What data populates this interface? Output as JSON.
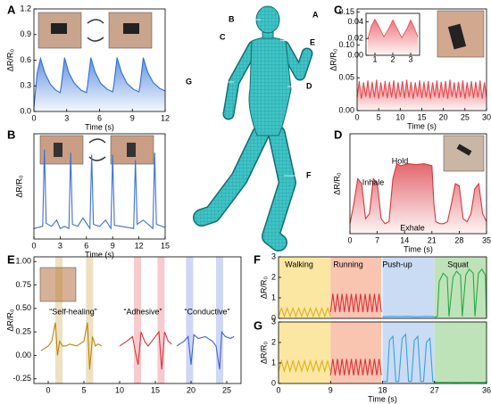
{
  "chart_data": [
    {
      "type": "line",
      "label": "A",
      "xlabel": "Time (s)",
      "ylabel": "ΔR/R₀",
      "area": true,
      "xlim": [
        0,
        12
      ],
      "xticks": [
        0,
        3,
        6,
        9,
        12
      ],
      "ylim": [
        0,
        1.2
      ],
      "yticks": [
        {
          "value": 0,
          "label": "0.0"
        },
        0.3,
        0.6,
        0.9,
        1.2
      ],
      "series": [
        {
          "color": "#2f6fd6",
          "x": [
            0,
            0.3,
            0.6,
            1.0,
            1.5,
            2.0,
            2.4,
            2.5,
            2.8,
            3.2,
            3.7,
            4.3,
            4.8,
            4.9,
            5.2,
            5.6,
            6.1,
            6.7,
            7.2,
            7.3,
            7.6,
            8.0,
            8.5,
            9.1,
            9.6,
            9.7,
            10.0,
            10.4,
            10.9,
            11.5,
            12
          ],
          "values": [
            0.05,
            0.45,
            0.62,
            0.45,
            0.32,
            0.25,
            0.22,
            0.3,
            0.63,
            0.45,
            0.33,
            0.25,
            0.22,
            0.3,
            0.63,
            0.46,
            0.33,
            0.26,
            0.23,
            0.3,
            0.63,
            0.46,
            0.33,
            0.26,
            0.23,
            0.3,
            0.63,
            0.46,
            0.34,
            0.27,
            0.24
          ]
        }
      ]
    },
    {
      "type": "line",
      "label": "B",
      "xlabel": "Time (s)",
      "ylabel": "ΔR/R₀",
      "xlim": [
        0,
        15
      ],
      "xticks": [
        0,
        3,
        6,
        9,
        12,
        15
      ],
      "ylim": [
        0,
        1
      ],
      "series": [
        {
          "color": "#3b6fd8",
          "x": [
            0,
            1.0,
            1.2,
            1.4,
            2,
            2.6,
            3,
            3.5,
            4.0,
            4.2,
            4.4,
            5,
            5.6,
            6.4,
            6.6,
            6.8,
            7.5,
            8.2,
            8.8,
            9.0,
            9.2,
            10,
            11.4,
            11.6,
            11.8,
            12.5,
            13.6,
            13.8,
            14.0,
            15
          ],
          "values": [
            0.1,
            0.12,
            0.85,
            0.15,
            0.12,
            0.18,
            0.1,
            0.12,
            0.1,
            0.82,
            0.14,
            0.12,
            0.2,
            0.1,
            0.8,
            0.14,
            0.12,
            0.18,
            0.1,
            0.8,
            0.13,
            0.12,
            0.1,
            0.75,
            0.14,
            0.18,
            0.1,
            0.82,
            0.14,
            0.11
          ]
        }
      ]
    },
    {
      "type": "line",
      "label": "C",
      "xlabel": "Time (s)",
      "ylabel": "ΔR/R₀",
      "area": true,
      "xlim": [
        0,
        30
      ],
      "xticks": [
        0,
        5,
        10,
        15,
        20,
        25,
        30
      ],
      "ylim": [
        0,
        0.155
      ],
      "yticks": [
        {
          "value": 0,
          "label": "0.00"
        },
        0.05,
        {
          "value": 0.1,
          "label": "0.10"
        },
        0.15
      ],
      "series": [
        {
          "color": "#e8484f",
          "x": [
            0,
            0.5,
            1,
            1.5,
            2,
            2.5,
            3,
            3.5,
            4,
            4.5,
            5,
            5.5,
            6,
            6.5,
            7,
            7.5,
            8,
            8.5,
            9,
            9.5,
            10,
            10.5,
            11,
            11.5,
            12,
            12.5,
            13,
            13.5,
            14,
            14.5,
            15,
            15.5,
            16,
            16.5,
            17,
            17.5,
            18,
            18.5,
            19,
            19.5,
            20,
            20.5,
            21,
            21.5,
            22,
            22.5,
            23,
            23.5,
            24,
            24.5,
            25,
            25.5,
            26,
            26.5,
            27,
            27.5,
            28,
            28.5,
            29,
            29.5,
            30
          ],
          "values": [
            0.02,
            0.045,
            0.018,
            0.043,
            0.021,
            0.046,
            0.019,
            0.044,
            0.02,
            0.047,
            0.018,
            0.043,
            0.021,
            0.045,
            0.019,
            0.044,
            0.02,
            0.046,
            0.018,
            0.043,
            0.021,
            0.045,
            0.019,
            0.047,
            0.02,
            0.044,
            0.018,
            0.043,
            0.021,
            0.046,
            0.019,
            0.044,
            0.02,
            0.045,
            0.018,
            0.043,
            0.021,
            0.046,
            0.019,
            0.044,
            0.02,
            0.045,
            0.018,
            0.047,
            0.021,
            0.043,
            0.019,
            0.044,
            0.02,
            0.046,
            0.018,
            0.043,
            0.021,
            0.045,
            0.019,
            0.044,
            0.02,
            0.046,
            0.018,
            0.043,
            0.021
          ]
        }
      ]
    },
    {
      "type": "line",
      "area": true,
      "xlim": [
        0.5,
        3.5
      ],
      "xticks": [
        1,
        2,
        3
      ],
      "ylim": [
        0,
        0.05
      ],
      "yticks": [
        {
          "value": 0,
          "label": "0.00"
        },
        {
          "value": 0.02,
          "label": "0.02"
        },
        {
          "value": 0.04,
          "label": "0.04"
        }
      ],
      "series": [
        {
          "color": "#e8484f",
          "x": [
            0.6,
            0.8,
            1.0,
            1.2,
            1.5,
            1.8,
            2.0,
            2.2,
            2.5,
            2.8,
            3.0,
            3.2,
            3.4
          ],
          "values": [
            0.02,
            0.035,
            0.043,
            0.035,
            0.022,
            0.033,
            0.042,
            0.034,
            0.021,
            0.032,
            0.042,
            0.033,
            0.022
          ]
        }
      ]
    },
    {
      "type": "line",
      "label": "D",
      "xlabel": "Time (s)",
      "ylabel": "ΔR/R₀",
      "area": true,
      "xlim": [
        0,
        35
      ],
      "xticks": [
        0,
        7,
        14,
        21,
        28,
        35
      ],
      "ylim": [
        0,
        1
      ],
      "annotations": [
        "Inhale",
        "Hold",
        "Exhale"
      ],
      "series": [
        {
          "color": "#d9363e",
          "x": [
            0,
            1,
            2,
            3,
            4,
            5,
            6,
            7,
            8,
            9,
            10,
            11,
            12,
            13,
            15,
            17,
            19,
            21,
            21.5,
            22,
            23,
            24,
            25,
            26,
            27,
            28,
            29,
            30,
            31,
            32,
            33,
            34,
            35
          ],
          "values": [
            0.1,
            0.3,
            0.55,
            0.5,
            0.15,
            0.2,
            0.55,
            0.5,
            0.15,
            0.1,
            0.12,
            0.55,
            0.7,
            0.68,
            0.7,
            0.69,
            0.7,
            0.68,
            0.3,
            0.12,
            0.1,
            0.1,
            0.12,
            0.3,
            0.5,
            0.48,
            0.15,
            0.12,
            0.2,
            0.45,
            0.5,
            0.2,
            0.12
          ]
        }
      ]
    },
    {
      "type": "line",
      "label": "E",
      "ylabel": "ΔR/R₀",
      "xlim": [
        -2,
        27
      ],
      "xticks": [
        0,
        5,
        10,
        15,
        20,
        25
      ],
      "ylim": [
        -0.3,
        1.05
      ],
      "yticks": [
        {
          "value": 1,
          "label": "1.00"
        },
        0.75,
        {
          "value": 0.5,
          "label": "0.50"
        },
        0.25,
        {
          "value": 0,
          "label": "0.00"
        },
        -0.25
      ],
      "series": [
        {
          "name": "“Self-healing”",
          "color": "#b8860b",
          "spans": [
            [
              1,
              2
            ],
            [
              5.3,
              6.3
            ]
          ],
          "x": [
            -1,
            0,
            0.5,
            1,
            1.3,
            1.6,
            2,
            2.5,
            3,
            4,
            5,
            5.5,
            5.8,
            6.2,
            6.6,
            7,
            7.5
          ],
          "values": [
            0.05,
            0.1,
            0.15,
            0.35,
            0.0,
            0.15,
            0.1,
            0.1,
            0.12,
            0.1,
            0.15,
            0.35,
            -0.15,
            0.2,
            0.1,
            0.12,
            0.1
          ]
        },
        {
          "name": "“Adhesive”",
          "color": "#e0303a",
          "spans": [
            [
              12,
              13
            ],
            [
              15.3,
              16.3
            ]
          ],
          "x": [
            10,
            11,
            11.8,
            12.3,
            12.6,
            13,
            13.5,
            14,
            15,
            15.5,
            15.9,
            16.3,
            16.8,
            17.3
          ],
          "values": [
            0.1,
            0.15,
            0.2,
            0.0,
            -0.1,
            0.25,
            0.15,
            0.1,
            0.2,
            0.25,
            -0.15,
            0.25,
            0.15,
            0.12
          ]
        },
        {
          "name": "“Conductive”",
          "color": "#3f5fe0",
          "spans": [
            [
              19.3,
              20.3
            ],
            [
              23.5,
              24.5
            ]
          ],
          "x": [
            18,
            19,
            19.6,
            20,
            20.4,
            21,
            22,
            23,
            23.5,
            24,
            24.3,
            24.8,
            25.5,
            26
          ],
          "values": [
            0.1,
            0.15,
            0.2,
            -0.1,
            0.22,
            0.18,
            0.2,
            0.15,
            0.1,
            -0.15,
            0.25,
            0.2,
            0.18,
            0.2
          ]
        }
      ]
    },
    {
      "type": "line",
      "label": "F",
      "ylabel": "ΔR/R₀",
      "xlim": [
        0,
        36
      ],
      "ylim": [
        0,
        3
      ],
      "yticks": [
        0,
        1,
        2,
        3
      ],
      "series": [
        {
          "name": "Walking",
          "color": "#e0b020",
          "band": "#fbe7a1",
          "x": [
            0,
            0.5,
            1,
            1.5,
            2,
            2.5,
            3,
            3.5,
            4,
            4.5,
            5,
            5.5,
            6,
            6.5,
            7,
            7.5,
            8,
            8.5,
            9
          ],
          "values": [
            0.1,
            0.5,
            0.1,
            0.5,
            0.1,
            0.5,
            0.1,
            0.5,
            0.1,
            0.5,
            0.1,
            0.5,
            0.1,
            0.5,
            0.1,
            0.5,
            0.1,
            0.5,
            0.1
          ]
        },
        {
          "name": "Running",
          "color": "#e0303a",
          "band": "#f9c4b0",
          "x": [
            9,
            9.4,
            9.8,
            10.2,
            10.6,
            11,
            11.4,
            11.8,
            12.2,
            12.6,
            13,
            13.4,
            13.8,
            14.2,
            14.6,
            15,
            15.4,
            15.8,
            16.2,
            16.6,
            17,
            17.4,
            17.8
          ],
          "values": [
            0.3,
            1.2,
            0.3,
            1.2,
            0.3,
            1.2,
            0.3,
            1.2,
            0.3,
            1.2,
            0.3,
            1.2,
            0.3,
            1.2,
            0.3,
            1.2,
            0.3,
            1.2,
            0.3,
            1.2,
            0.3,
            1.2,
            0.3
          ]
        },
        {
          "name": "Push-up",
          "color": "#3aa0e0",
          "band": "#c9dcf3",
          "x": [
            18,
            19.5,
            21,
            22.5,
            24,
            25.5,
            27
          ],
          "values": [
            0.08,
            0.1,
            0.09,
            0.1,
            0.08,
            0.1,
            0.09
          ]
        },
        {
          "name": "Squat",
          "color": "#2aa84a",
          "band": "#bfe3b8",
          "x": [
            27,
            27.5,
            27.8,
            28.5,
            29.2,
            29.5,
            30.2,
            30.8,
            31.5,
            31.8,
            32.4,
            33,
            33.7,
            34,
            34.6,
            35.2,
            35.8,
            36
          ],
          "values": [
            0.05,
            0.1,
            1.8,
            2.2,
            2.0,
            0.1,
            2.0,
            2.3,
            2.1,
            0.1,
            2.1,
            2.4,
            2.2,
            0.1,
            2.2,
            2.4,
            2.1,
            0.1
          ]
        }
      ]
    },
    {
      "type": "line",
      "label": "G",
      "ylabel": "ΔR/R₀",
      "xlabel": "Time (s)",
      "xlim": [
        0,
        36
      ],
      "xticks": [
        0,
        9,
        18,
        27,
        36
      ],
      "ylim": [
        0,
        3
      ],
      "yticks": [
        0,
        1,
        2,
        3
      ],
      "series": [
        {
          "color": "#e0b020",
          "band": "#fbe7a1",
          "x": [
            0,
            0.5,
            1,
            1.5,
            2,
            2.5,
            3,
            3.5,
            4,
            4.5,
            5,
            5.5,
            6,
            6.5,
            7,
            7.5,
            8,
            8.5,
            9
          ],
          "values": [
            0.6,
            1.1,
            0.6,
            1.1,
            0.6,
            1.1,
            0.6,
            1.1,
            0.6,
            1.1,
            0.6,
            1.1,
            0.6,
            1.1,
            0.6,
            1.1,
            0.6,
            1.1,
            0.6
          ]
        },
        {
          "color": "#e0303a",
          "band": "#f9c4b0",
          "x": [
            9,
            9.4,
            9.8,
            10.2,
            10.6,
            11,
            11.4,
            11.8,
            12.2,
            12.6,
            13,
            13.4,
            13.8,
            14.2,
            14.6,
            15,
            15.4,
            15.8,
            16.2,
            16.6,
            17,
            17.4,
            17.8
          ],
          "values": [
            0.4,
            1.2,
            0.4,
            1.2,
            0.4,
            1.2,
            0.4,
            1.2,
            0.4,
            1.2,
            0.4,
            1.2,
            0.4,
            1.2,
            0.4,
            1.2,
            0.4,
            1.2,
            0.4,
            1.2,
            0.4,
            1.2,
            0.4
          ]
        },
        {
          "color": "#3aa0e0",
          "band": "#c9dcf3",
          "x": [
            18,
            18.8,
            19.2,
            19.8,
            20.3,
            20.8,
            21.4,
            22,
            22.5,
            23,
            23.5,
            24.1,
            24.6,
            25.1,
            25.6,
            26.2,
            26.7,
            27
          ],
          "values": [
            0.1,
            0.1,
            2.1,
            2.3,
            0.1,
            0.1,
            2.2,
            2.4,
            0.1,
            0.1,
            2.1,
            2.3,
            0.1,
            0.1,
            2.0,
            2.2,
            0.1,
            0.1
          ]
        },
        {
          "color": "#2aa84a",
          "band": "#bfe3b8",
          "x": [
            27,
            29,
            31,
            33,
            35,
            36
          ],
          "values": [
            0.05,
            0.06,
            0.05,
            0.06,
            0.05,
            0.05
          ]
        }
      ]
    }
  ],
  "diagram": {
    "labels": [
      "A",
      "B",
      "C",
      "E",
      "G",
      "D",
      "F"
    ]
  }
}
